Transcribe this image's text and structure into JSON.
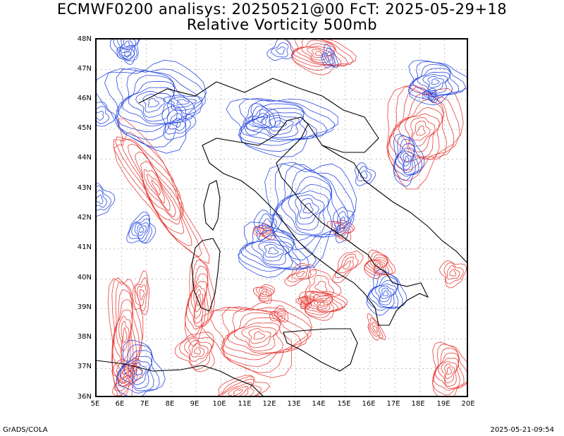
{
  "title": {
    "line1": "ECMWF0200 analisys: 20250521@00 FcT: 2025-05-29+18",
    "line2": "Relative Vorticity 500mb"
  },
  "map": {
    "projection": "lat-lon",
    "lon_range": [
      5,
      20
    ],
    "lat_range": [
      36,
      48
    ],
    "lat_labels": [
      "48N",
      "47N",
      "46N",
      "45N",
      "44N",
      "43N",
      "42N",
      "41N",
      "40N",
      "39N",
      "38N",
      "37N",
      "36N"
    ],
    "lon_labels": [
      "5E",
      "6E",
      "7E",
      "8E",
      "9E",
      "10E",
      "11E",
      "12E",
      "13E",
      "14E",
      "15E",
      "16E",
      "17E",
      "18E",
      "19E",
      "20E"
    ],
    "colors": {
      "positive_vorticity": "#e8413c",
      "negative_vorticity": "#2a4be0",
      "coastline": "#000000",
      "grid": "#888888"
    }
  },
  "footer": {
    "left": "GrADS/COLA",
    "right": "2025-05-21-09:54"
  }
}
